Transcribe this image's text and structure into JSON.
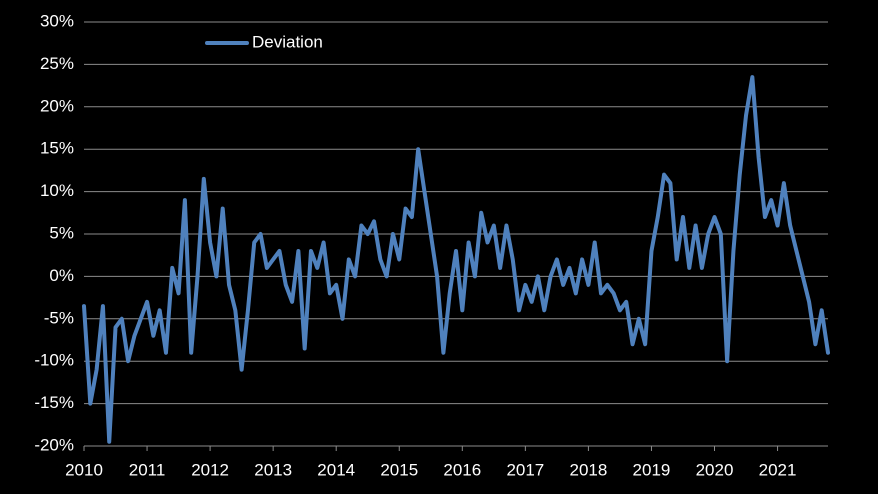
{
  "chart_data": {
    "type": "line",
    "x": [
      2010.0,
      2010.1,
      2010.2,
      2010.3,
      2010.4,
      2010.5,
      2010.6,
      2010.7,
      2010.8,
      2010.9,
      2011.0,
      2011.1,
      2011.2,
      2011.3,
      2011.4,
      2011.5,
      2011.6,
      2011.7,
      2011.8,
      2011.9,
      2012.0,
      2012.1,
      2012.2,
      2012.3,
      2012.4,
      2012.5,
      2012.6,
      2012.7,
      2012.8,
      2012.9,
      2013.0,
      2013.1,
      2013.2,
      2013.3,
      2013.4,
      2013.5,
      2013.6,
      2013.7,
      2013.8,
      2013.9,
      2014.0,
      2014.1,
      2014.2,
      2014.3,
      2014.4,
      2014.5,
      2014.6,
      2014.7,
      2014.8,
      2014.9,
      2015.0,
      2015.1,
      2015.2,
      2015.3,
      2015.4,
      2015.5,
      2015.6,
      2015.7,
      2015.8,
      2015.9,
      2016.0,
      2016.1,
      2016.2,
      2016.3,
      2016.4,
      2016.5,
      2016.6,
      2016.7,
      2016.8,
      2016.9,
      2017.0,
      2017.1,
      2017.2,
      2017.3,
      2017.4,
      2017.5,
      2017.6,
      2017.7,
      2017.8,
      2017.9,
      2018.0,
      2018.1,
      2018.2,
      2018.3,
      2018.4,
      2018.5,
      2018.6,
      2018.7,
      2018.8,
      2018.9,
      2019.0,
      2019.1,
      2019.2,
      2019.3,
      2019.4,
      2019.5,
      2019.6,
      2019.7,
      2019.8,
      2019.9,
      2020.0,
      2020.1,
      2020.2,
      2020.3,
      2020.4,
      2020.5,
      2020.6,
      2020.7,
      2020.8,
      2020.9,
      2021.0,
      2021.1,
      2021.2,
      2021.3,
      2021.4,
      2021.5,
      2021.6,
      2021.7,
      2021.8
    ],
    "series": [
      {
        "name": "Deviation",
        "color": "#4f81bd",
        "values": [
          -3.5,
          -15,
          -11,
          -3.5,
          -19.5,
          -6,
          -5,
          -10,
          -7,
          -5,
          -3,
          -7,
          -4,
          -9,
          1,
          -2,
          9,
          -9,
          0,
          11.5,
          4,
          0,
          8,
          -1,
          -4,
          -11,
          -4,
          4,
          5,
          1,
          2,
          3,
          -1,
          -3,
          3,
          -8.5,
          3,
          1,
          4,
          -2,
          -1,
          -5,
          2,
          0,
          6,
          5,
          6.5,
          2,
          0,
          5,
          2,
          8,
          7,
          15,
          10,
          5,
          0,
          -9,
          -2,
          3,
          -4,
          4,
          0,
          7.5,
          4,
          6,
          1,
          6,
          2,
          -4,
          -1,
          -3,
          0,
          -4,
          0,
          2,
          -1,
          1,
          -2,
          2,
          -1,
          4,
          -2,
          -1,
          -2,
          -4,
          -3,
          -8,
          -5,
          -8,
          3,
          7,
          12,
          11,
          2,
          7,
          1,
          6,
          1,
          5,
          7,
          5,
          -10,
          3,
          12,
          19,
          23.5,
          14,
          7,
          9,
          6,
          11,
          6,
          3,
          0,
          -3,
          -8,
          -4,
          -9
        ]
      }
    ],
    "xlim": [
      2010,
      2021.8
    ],
    "xticks": [
      2010,
      2011,
      2012,
      2013,
      2014,
      2015,
      2016,
      2017,
      2018,
      2019,
      2020,
      2021
    ],
    "ylim": [
      -20,
      30
    ],
    "yticks": [
      {
        "value": -20,
        "label": "-20%"
      },
      {
        "value": -15,
        "label": "-15%"
      },
      {
        "value": -10,
        "label": "-10%"
      },
      {
        "value": -5,
        "label": "-5%"
      },
      {
        "value": 0,
        "label": "0%"
      },
      {
        "value": 5,
        "label": "5%"
      },
      {
        "value": 10,
        "label": "10%"
      },
      {
        "value": 15,
        "label": "15%"
      },
      {
        "value": 20,
        "label": "20%"
      },
      {
        "value": 25,
        "label": "25%"
      },
      {
        "value": 30,
        "label": "30%"
      }
    ],
    "grid": true,
    "legend": "top-left"
  }
}
